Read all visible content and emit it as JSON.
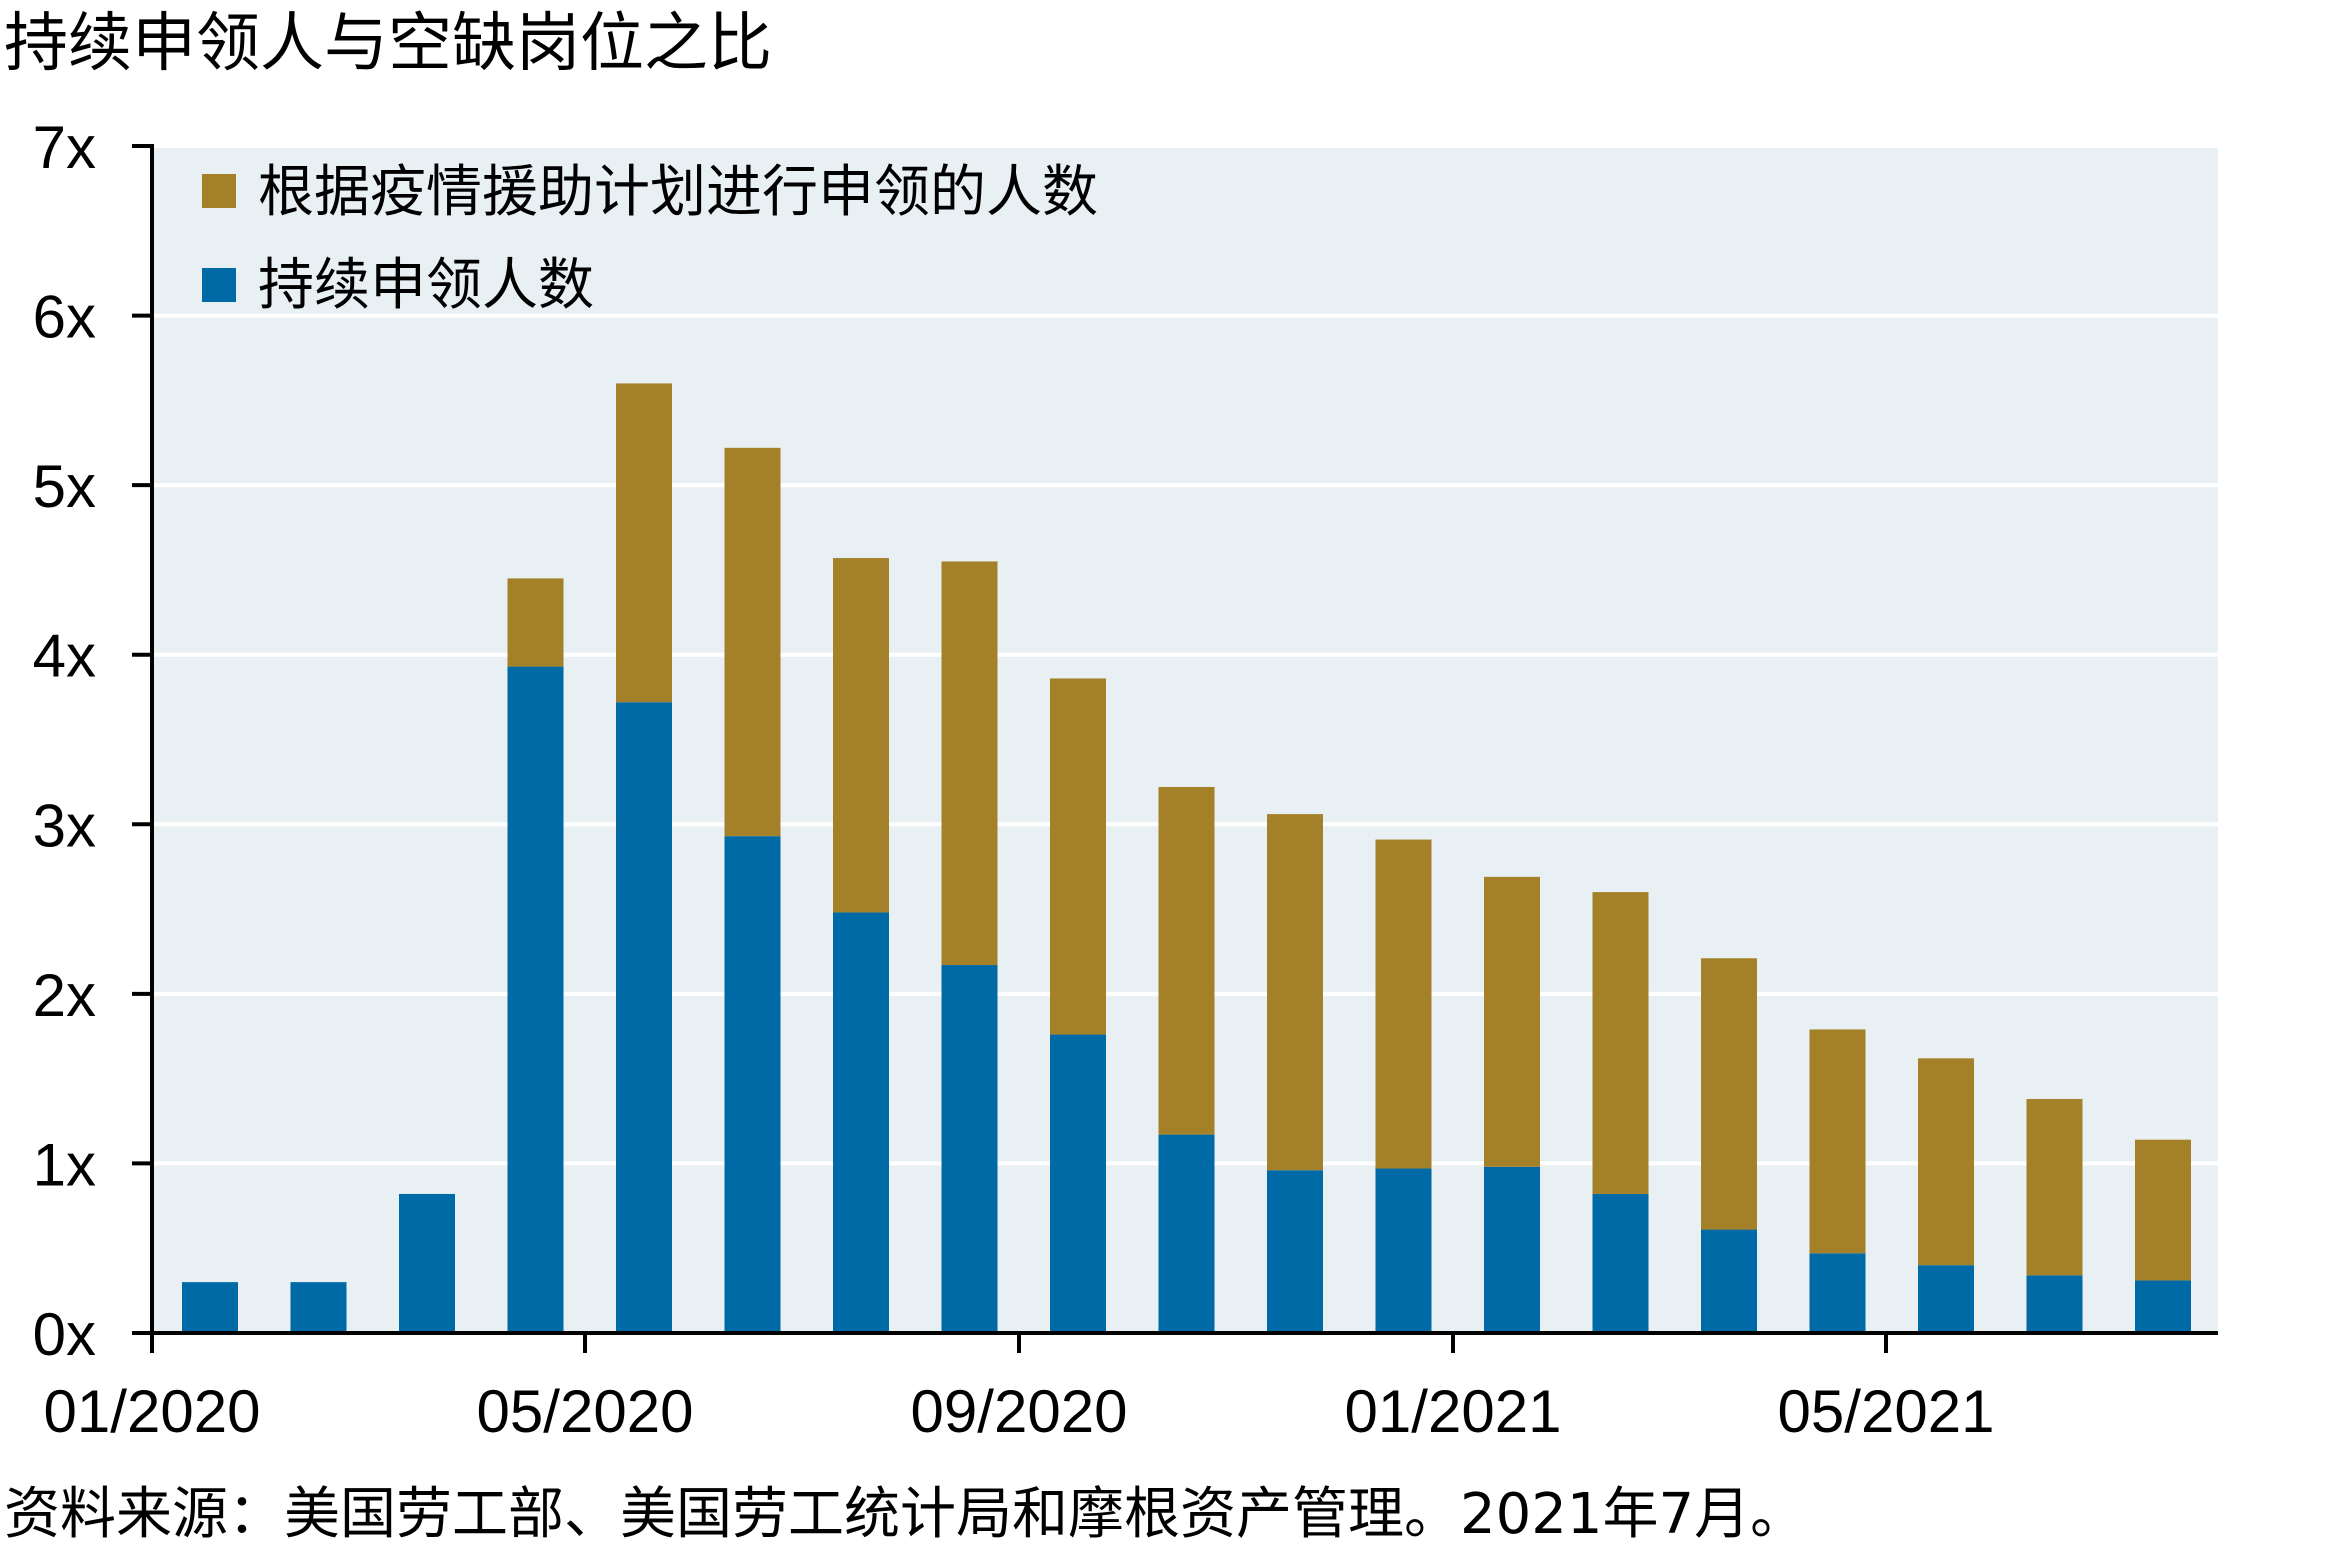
{
  "title": "持续申领人与空缺岗位之比",
  "source": "资料来源：美国劳工部、美国劳工统计局和摩根资产管理。2021年7月。",
  "colors": {
    "plot_bg": "#e8f0f3",
    "continuing": "#006aa6",
    "pandemic": "#a48129",
    "grid": "#ffffff",
    "axis": "#000000"
  },
  "chart_data": {
    "type": "bar",
    "stacked": true,
    "title": "持续申领人与空缺岗位之比",
    "xlabel": "",
    "ylabel": "",
    "ylim": [
      0,
      7
    ],
    "yticks": [
      "0x",
      "1x",
      "2x",
      "3x",
      "4x",
      "5x",
      "6x",
      "7x"
    ],
    "xtick_labels": [
      "01/2020",
      "05/2020",
      "09/2020",
      "01/2021",
      "05/2021"
    ],
    "grid": "horizontal",
    "legend_position": "top-left",
    "categories": [
      "01/2020",
      "02/2020",
      "03/2020",
      "04/2020",
      "05/2020",
      "06/2020",
      "07/2020",
      "08/2020",
      "09/2020",
      "10/2020",
      "11/2020",
      "12/2020",
      "01/2021",
      "02/2021",
      "03/2021",
      "04/2021",
      "05/2021",
      "06/2021",
      "07/2021"
    ],
    "series": [
      {
        "name": "持续申领人数",
        "color": "#006aa6",
        "values": [
          0.3,
          0.3,
          0.82,
          3.93,
          3.72,
          2.93,
          2.48,
          2.17,
          1.76,
          1.17,
          0.96,
          0.97,
          0.98,
          0.82,
          0.61,
          0.47,
          0.4,
          0.34,
          0.31
        ]
      },
      {
        "name": "根据疫情援助计划进行申领的人数",
        "color": "#a48129",
        "values": [
          0,
          0,
          0,
          0.52,
          1.88,
          2.29,
          2.09,
          2.38,
          2.1,
          2.05,
          2.1,
          1.94,
          1.71,
          1.78,
          1.6,
          1.32,
          1.22,
          1.04,
          0.83
        ]
      }
    ]
  }
}
